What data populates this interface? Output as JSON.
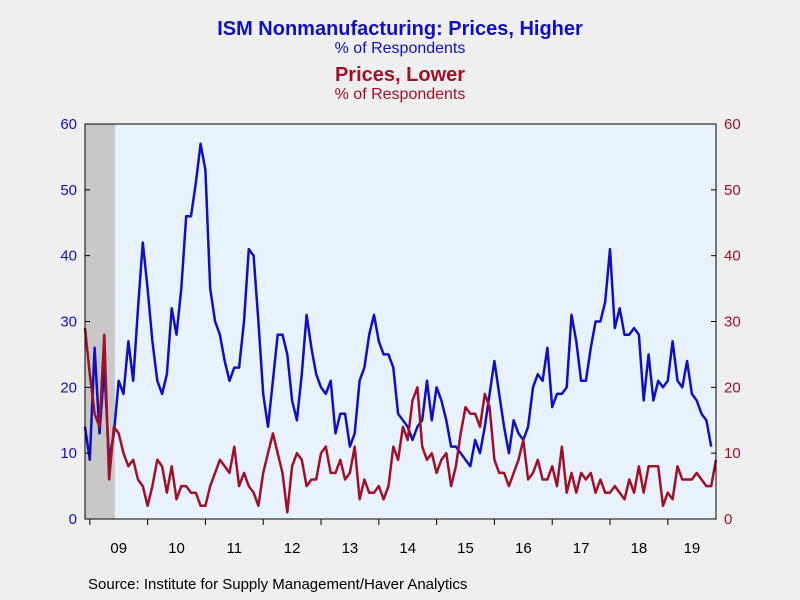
{
  "chart_data": {
    "type": "line",
    "title": "ISM Nonmanufacturing: Prices, Higher",
    "title_sub": "% of Respondents",
    "title2": "Prices, Lower",
    "title2_sub": "% of Respondents",
    "source": "Source:  Institute for Supply Management/Haver Analytics",
    "x_tick_labels": [
      "09",
      "10",
      "11",
      "12",
      "13",
      "14",
      "15",
      "16",
      "17",
      "18",
      "19"
    ],
    "x_ticks_years": [
      2009,
      2010,
      2011,
      2012,
      2013,
      2014,
      2015,
      2016,
      2017,
      2018,
      2019
    ],
    "xlim": [
      "2008-12",
      "2019-11"
    ],
    "ylim_left": [
      0,
      60
    ],
    "ylim_right": [
      0,
      60
    ],
    "y_ticks": [
      0,
      10,
      20,
      30,
      40,
      50,
      60
    ],
    "recession_shading": {
      "from": "2008-12",
      "to": "2009-06"
    },
    "grid": false,
    "colors": {
      "higher": "#1010c0",
      "lower": "#a01028",
      "plot_bg": "#e8f2fd",
      "recession": "#c8c8c8",
      "page_bg": "#efefef"
    },
    "series": [
      {
        "name": "Prices, Higher",
        "axis": "left",
        "start": "2008-12",
        "values": [
          14,
          9,
          26,
          13,
          23,
          9,
          13,
          21,
          19,
          27,
          21,
          32,
          42,
          35,
          27,
          21,
          19,
          22,
          32,
          28,
          35,
          46,
          46,
          51,
          57,
          53,
          35,
          30,
          28,
          24,
          21,
          23,
          23,
          30,
          41,
          40,
          30,
          19,
          14,
          21,
          28,
          28,
          25,
          18,
          15,
          22,
          31,
          26,
          22,
          20,
          19,
          21,
          13,
          16,
          16,
          11,
          13,
          21,
          23,
          28,
          31,
          27,
          25,
          25,
          23,
          16,
          15,
          14,
          12,
          14,
          15,
          21,
          15,
          20,
          18,
          15,
          11,
          11,
          10,
          9,
          8,
          12,
          10,
          14,
          19,
          24,
          19,
          14,
          10,
          15,
          13,
          12,
          14,
          20,
          22,
          21,
          26,
          17,
          19,
          19,
          20,
          31,
          27,
          21,
          21,
          26,
          30,
          30,
          33,
          41,
          29,
          32,
          28,
          28,
          29,
          28,
          18,
          25,
          18,
          21,
          20,
          21,
          27,
          21,
          20,
          24,
          19,
          18,
          16,
          15,
          11
        ]
      },
      {
        "name": "Prices, Lower",
        "axis": "right",
        "start": "2008-12",
        "values": [
          29,
          22,
          16,
          14,
          28,
          6,
          14,
          13,
          10,
          8,
          9,
          6,
          5,
          2,
          5,
          9,
          8,
          4,
          8,
          3,
          5,
          5,
          4,
          4,
          2,
          2,
          5,
          7,
          9,
          8,
          7,
          11,
          5,
          7,
          5,
          4,
          2,
          7,
          10,
          13,
          10,
          7,
          1,
          8,
          10,
          9,
          5,
          6,
          6,
          10,
          11,
          7,
          7,
          9,
          6,
          7,
          11,
          3,
          6,
          4,
          4,
          5,
          3,
          5,
          11,
          9,
          14,
          12,
          18,
          20,
          11,
          9,
          10,
          7,
          9,
          10,
          5,
          8,
          13,
          17,
          16,
          16,
          14,
          19,
          17,
          9,
          7,
          7,
          5,
          7,
          9,
          12,
          6,
          7,
          9,
          6,
          6,
          8,
          5,
          11,
          4,
          7,
          4,
          7,
          6,
          7,
          4,
          6,
          4,
          4,
          5,
          4,
          3,
          6,
          4,
          8,
          4,
          8,
          8,
          8,
          2,
          4,
          3,
          8,
          6,
          6,
          6,
          7,
          6,
          5,
          5,
          9
        ]
      }
    ]
  }
}
